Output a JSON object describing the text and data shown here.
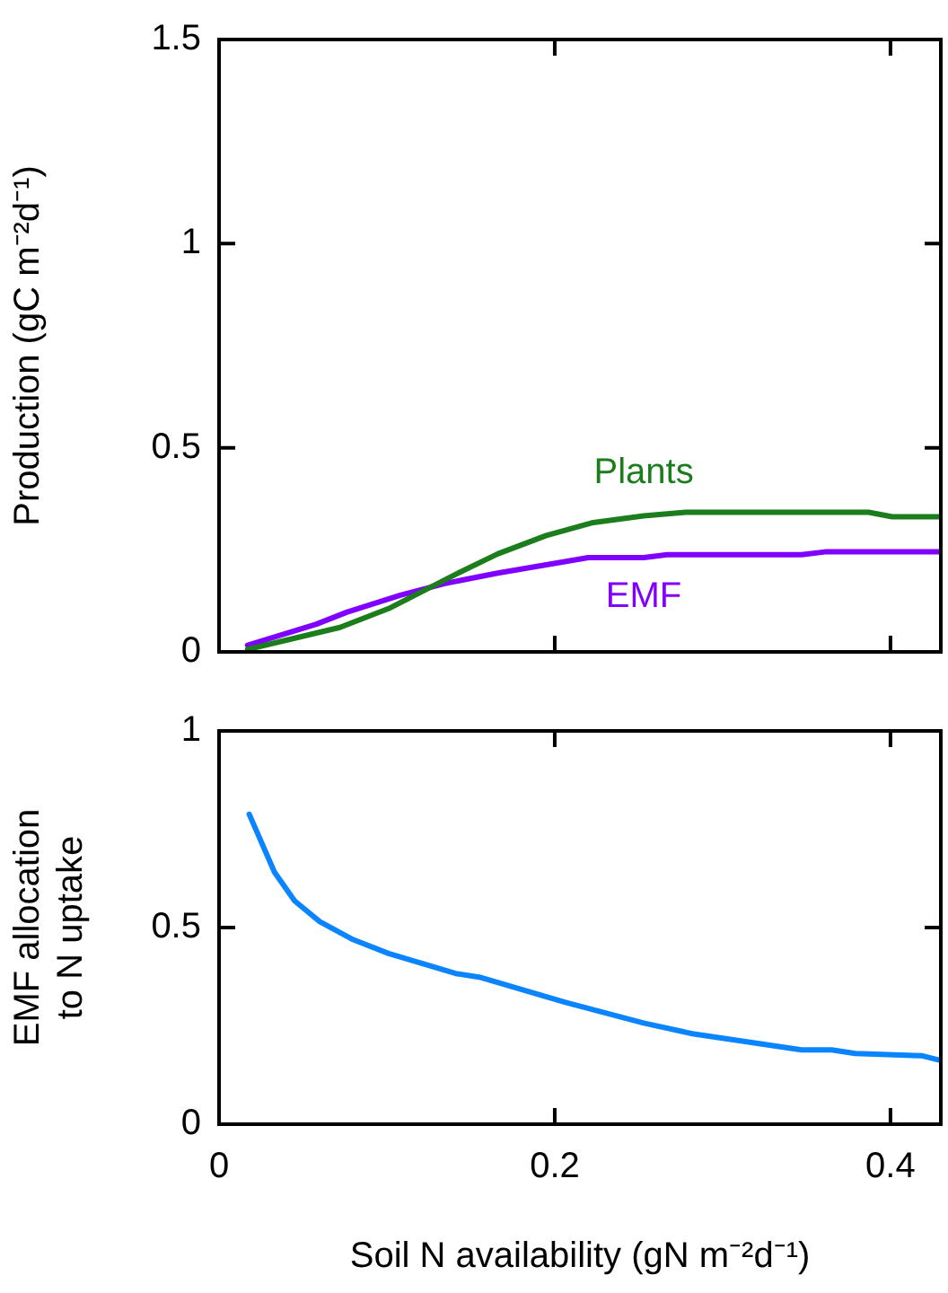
{
  "chart_data": [
    {
      "type": "line",
      "ylabel": "Production (gC m⁻²d⁻¹)",
      "xlim": [
        0,
        0.43
      ],
      "xticks": [
        0,
        0.2,
        0.4
      ],
      "ylim": [
        0,
        1.5
      ],
      "yticks": [
        0,
        0.5,
        1,
        1.5
      ],
      "tick_labels": "y",
      "grid": false,
      "legend": false,
      "series": [
        {
          "name": "Plants",
          "color": "#1b7d1b",
          "x": [
            0.017,
            0.072,
            0.101,
            0.141,
            0.166,
            0.195,
            0.222,
            0.253,
            0.278,
            0.387,
            0.401,
            0.43
          ],
          "values": [
            0.006,
            0.06,
            0.106,
            0.19,
            0.24,
            0.285,
            0.316,
            0.333,
            0.342,
            0.342,
            0.331,
            0.331
          ]
        },
        {
          "name": "EMF",
          "color": "#8000ff",
          "x": [
            0.017,
            0.058,
            0.076,
            0.108,
            0.134,
            0.166,
            0.22,
            0.253,
            0.267,
            0.347,
            0.361,
            0.43
          ],
          "values": [
            0.016,
            0.068,
            0.097,
            0.139,
            0.167,
            0.193,
            0.231,
            0.231,
            0.238,
            0.238,
            0.245,
            0.245
          ]
        }
      ]
    },
    {
      "type": "line",
      "xlabel": "Soil N availability (gN m⁻²d⁻¹)",
      "ylabel": "EMF allocation\nto N uptake",
      "xlim": [
        0,
        0.43
      ],
      "xticks": [
        0,
        0.2,
        0.4
      ],
      "ylim": [
        0,
        1
      ],
      "yticks": [
        0,
        0.5,
        1
      ],
      "grid": false,
      "legend": false,
      "series": [
        {
          "color": "#0a84ff",
          "x": [
            0.018,
            0.033,
            0.045,
            0.06,
            0.079,
            0.101,
            0.141,
            0.155,
            0.206,
            0.253,
            0.282,
            0.347,
            0.365,
            0.379,
            0.419,
            0.43
          ],
          "values": [
            0.788,
            0.641,
            0.568,
            0.515,
            0.471,
            0.434,
            0.383,
            0.374,
            0.31,
            0.257,
            0.23,
            0.189,
            0.189,
            0.18,
            0.174,
            0.162
          ]
        }
      ]
    }
  ]
}
